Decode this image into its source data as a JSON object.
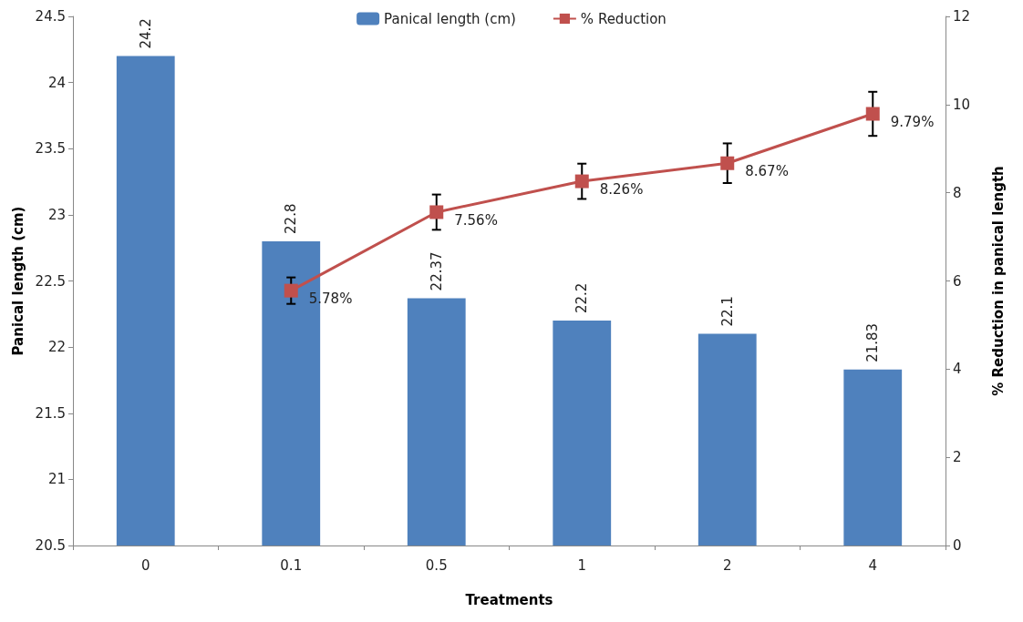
{
  "chart_data": {
    "type": "bar",
    "categories": [
      "0",
      "0.1",
      "0.5",
      "1",
      "2",
      "4"
    ],
    "xlabel": "Treatments",
    "ylabel": "Panical length (cm)",
    "y2label": "% Reduction in panical length",
    "series": [
      {
        "name": "Panical length (cm)",
        "color": "#4f81bd",
        "values": [
          24.2,
          22.8,
          22.37,
          22.2,
          22.1,
          21.83
        ],
        "data_labels": true
      },
      {
        "name": "% Reduction",
        "type": "line",
        "axis": "y2",
        "color": "#c0504d",
        "marker": "square",
        "values": [
          null,
          5.78,
          7.56,
          8.26,
          8.67,
          9.79
        ],
        "errors": [
          null,
          0.3,
          0.4,
          0.4,
          0.45,
          0.5
        ],
        "value_labels": [
          null,
          "5.78%",
          "7.56%",
          "8.26%",
          "8.67%",
          "9.79%"
        ]
      }
    ],
    "ylim": [
      20.5,
      24.5
    ],
    "yticks": [
      20.5,
      21,
      21.5,
      22,
      22.5,
      23,
      23.5,
      24,
      24.5
    ],
    "y2lim": [
      0,
      12
    ],
    "y2ticks": [
      0,
      2,
      4,
      6,
      8,
      10,
      12
    ],
    "grid": false,
    "legend": "top"
  }
}
